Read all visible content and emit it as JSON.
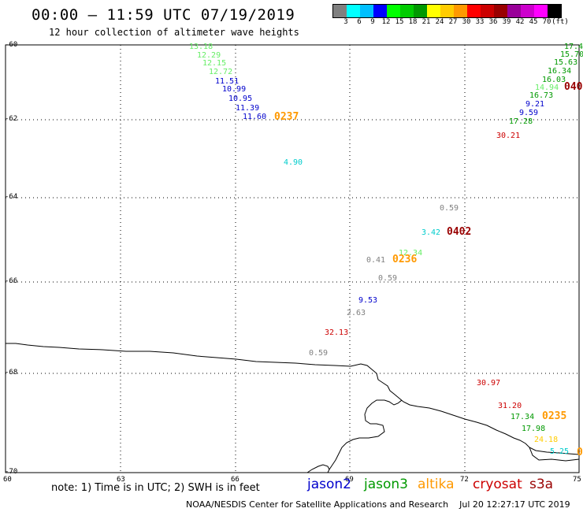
{
  "header": {
    "title": "00:00 – 11:59 UTC 07/19/2019",
    "subtitle": "12 hour collection of altimeter wave heights"
  },
  "color_scale": {
    "colors": [
      "#808080",
      "#00ffff",
      "#00bfff",
      "#0000ff",
      "#00ff00",
      "#00cc00",
      "#009900",
      "#ffff00",
      "#ffcc00",
      "#ff9900",
      "#ff0000",
      "#cc0000",
      "#990000",
      "#990099",
      "#cc00cc",
      "#ff00ff",
      "#000000"
    ],
    "labels": [
      "3",
      "6",
      "9",
      "12",
      "15",
      "18",
      "21",
      "24",
      "27",
      "30",
      "33",
      "36",
      "39",
      "42",
      "45",
      "70",
      "(ft)"
    ]
  },
  "axes": {
    "lat_labels": [
      "-60",
      "-62",
      "-64",
      "-66",
      "-68",
      "-70"
    ],
    "lon_labels": [
      "60",
      "63",
      "66",
      "69",
      "72",
      "75"
    ]
  },
  "observations": [
    {
      "text": "13.18",
      "color": "#66ee66"
    },
    {
      "text": "12.29",
      "color": "#66ee66"
    },
    {
      "text": "12.15",
      "color": "#66ee66"
    },
    {
      "text": "12.72",
      "color": "#66ee66"
    },
    {
      "text": "11.51",
      "color": "#0000cc"
    },
    {
      "text": "10.99",
      "color": "#0000cc"
    },
    {
      "text": "10.95",
      "color": "#0000cc"
    },
    {
      "text": "11.39",
      "color": "#0000cc"
    },
    {
      "text": "11.60",
      "color": "#0000cc"
    },
    {
      "text": "0237",
      "color": "#ff9900"
    },
    {
      "text": "4.90",
      "color": "#00cccc"
    },
    {
      "text": "0.59",
      "color": "#808080"
    },
    {
      "text": "3.42",
      "color": "#00cccc"
    },
    {
      "text": "0402",
      "color": "#990000"
    },
    {
      "text": "12.34",
      "color": "#66ee66"
    },
    {
      "text": "0.41",
      "color": "#808080"
    },
    {
      "text": "0236",
      "color": "#ff9900"
    },
    {
      "text": "0.59",
      "color": "#808080"
    },
    {
      "text": "9.53",
      "color": "#0000cc"
    },
    {
      "text": "2.63",
      "color": "#808080"
    },
    {
      "text": "32.13",
      "color": "#cc0000"
    },
    {
      "text": "0.59",
      "color": "#808080"
    },
    {
      "text": "30.97",
      "color": "#cc0000"
    },
    {
      "text": "31.20",
      "color": "#cc0000"
    },
    {
      "text": "17.34",
      "color": "#009900"
    },
    {
      "text": "0235",
      "color": "#ff9900"
    },
    {
      "text": "17.98",
      "color": "#009900"
    },
    {
      "text": "24.18",
      "color": "#ffcc00"
    },
    {
      "text": "5.25",
      "color": "#00cccc"
    },
    {
      "text": "0",
      "color": "#ff9900"
    },
    {
      "text": "17.4",
      "color": "#009900"
    },
    {
      "text": "15.70",
      "color": "#009900"
    },
    {
      "text": "15.63",
      "color": "#009900"
    },
    {
      "text": "16.34",
      "color": "#009900"
    },
    {
      "text": "16.03",
      "color": "#009900"
    },
    {
      "text": "14.94",
      "color": "#66ee66"
    },
    {
      "text": "040",
      "color": "#990000"
    },
    {
      "text": "16.73",
      "color": "#009900"
    },
    {
      "text": "9.21",
      "color": "#0000cc"
    },
    {
      "text": "9.59",
      "color": "#0000cc"
    },
    {
      "text": "17.28",
      "color": "#009900"
    },
    {
      "text": "30.21",
      "color": "#cc0000"
    }
  ],
  "footer": {
    "note": "note: 1) Time is in UTC; 2) SWH is in feet",
    "satellites": [
      {
        "name": "jason2",
        "color": "#0000cc"
      },
      {
        "name": "jason3",
        "color": "#009900"
      },
      {
        "name": "altika",
        "color": "#ff9900"
      },
      {
        "name": "cryosat",
        "color": "#cc0000"
      },
      {
        "name": "s3a",
        "color": "#990000"
      }
    ],
    "credit": "NOAA/NESDIS Center for Satellite Applications and Research    Jul 20 12:27:17 UTC 2019"
  }
}
